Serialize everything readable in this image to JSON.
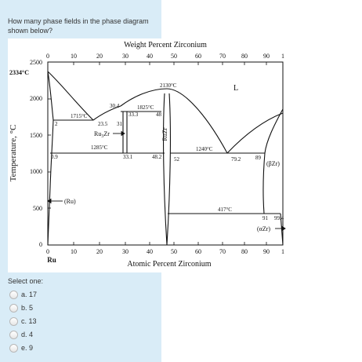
{
  "question": {
    "text": "How many phase fields in the phase diagram shown below?"
  },
  "diagram": {
    "top_axis_title": "Weight Percent Zirconium",
    "bottom_axis_title": "Atomic Percent Zirconium",
    "y_axis_title": "Temperature, °C",
    "top_ticks": [
      "0",
      "10",
      "20",
      "30",
      "40",
      "50",
      "60",
      "70",
      "80",
      "90",
      "1"
    ],
    "bottom_ticks": [
      "0",
      "10",
      "20",
      "30",
      "40",
      "50",
      "60",
      "70",
      "80",
      "90",
      "1"
    ],
    "y_ticks": [
      "2500",
      "2000",
      "1500",
      "1000",
      "500",
      "0"
    ],
    "bottom_left_label": "Ru",
    "annotations": {
      "ru_melting": "2334°C",
      "liquid": "L",
      "rutzr_max": "2130°C",
      "t1715": "1715°C",
      "t1825": "1825°C",
      "t1285": "1285°C",
      "t1240": "1240°C",
      "t417": "417°C",
      "c30_4": "30.4",
      "c33_3": "33.3",
      "c48": "48",
      "c2": "2",
      "c23_5": "23.5",
      "c31": "31",
      "c0_9": "0.9",
      "c33_1": "33.1",
      "c48_2": "48.2",
      "c52": "52",
      "c79_2": "79.2",
      "c89": "89",
      "c91": "91",
      "c99_4": "99.4",
      "ru3zr_main": "Ru",
      "ru3zr_sub": "3",
      "ru3zr_suffix": "Zr",
      "ruzr": "RuZr",
      "ru_phase": "(Ru)",
      "bzr": "(βZr)",
      "azr": "(αZr)"
    }
  },
  "answer": {
    "select_one_label": "Select one:",
    "options": [
      {
        "label": "a. 17"
      },
      {
        "label": "b. 5"
      },
      {
        "label": "c. 13"
      },
      {
        "label": "d. 4"
      },
      {
        "label": "e. 9"
      }
    ]
  }
}
